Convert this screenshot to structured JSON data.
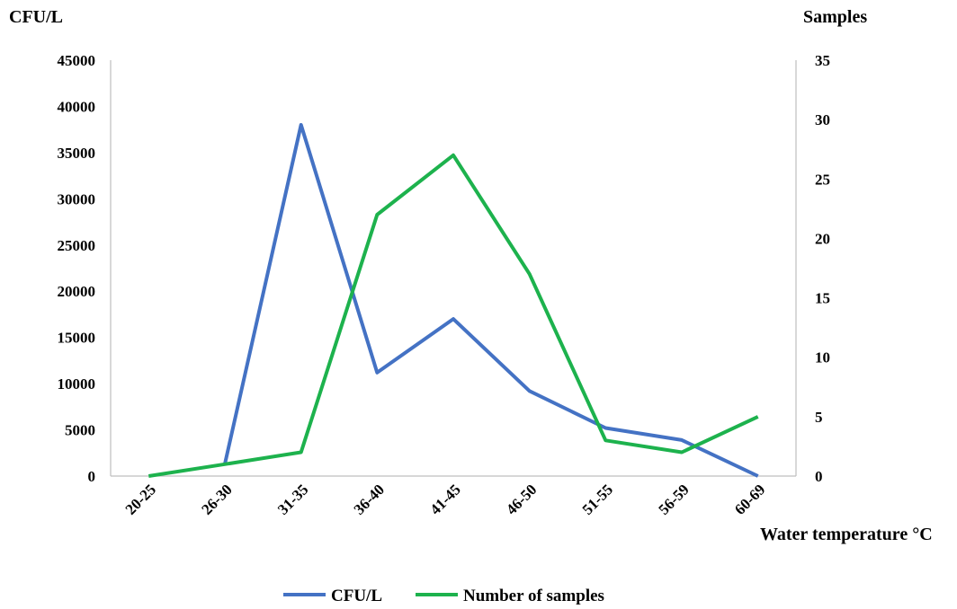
{
  "chart_data": {
    "type": "line",
    "categories": [
      "20-25",
      "26-30",
      "31-35",
      "36-40",
      "41-45",
      "46-50",
      "51-55",
      "56-59",
      "60-69"
    ],
    "series": [
      {
        "name": "CFU/L",
        "axis": "left",
        "color": "#4472C4",
        "values": [
          null,
          1300,
          38000,
          11200,
          17000,
          9200,
          5200,
          3900,
          0
        ]
      },
      {
        "name": "Number of samples",
        "axis": "right",
        "color": "#1DB24D",
        "values": [
          0,
          1,
          2,
          22,
          27,
          17,
          3,
          2,
          5
        ]
      }
    ],
    "ylabel_left": "CFU/L",
    "ylabel_right": "Samples",
    "xlabel": "Water temperature °C",
    "ylim_left": [
      0,
      45000
    ],
    "yticks_left": [
      "0",
      "5000",
      "10000",
      "15000",
      "20000",
      "25000",
      "30000",
      "35000",
      "40000",
      "45000"
    ],
    "ylim_right": [
      0,
      35
    ],
    "yticks_right": [
      "0",
      "5",
      "10",
      "15",
      "20",
      "25",
      "30",
      "35"
    ],
    "grid": false,
    "legend_position": "bottom"
  }
}
